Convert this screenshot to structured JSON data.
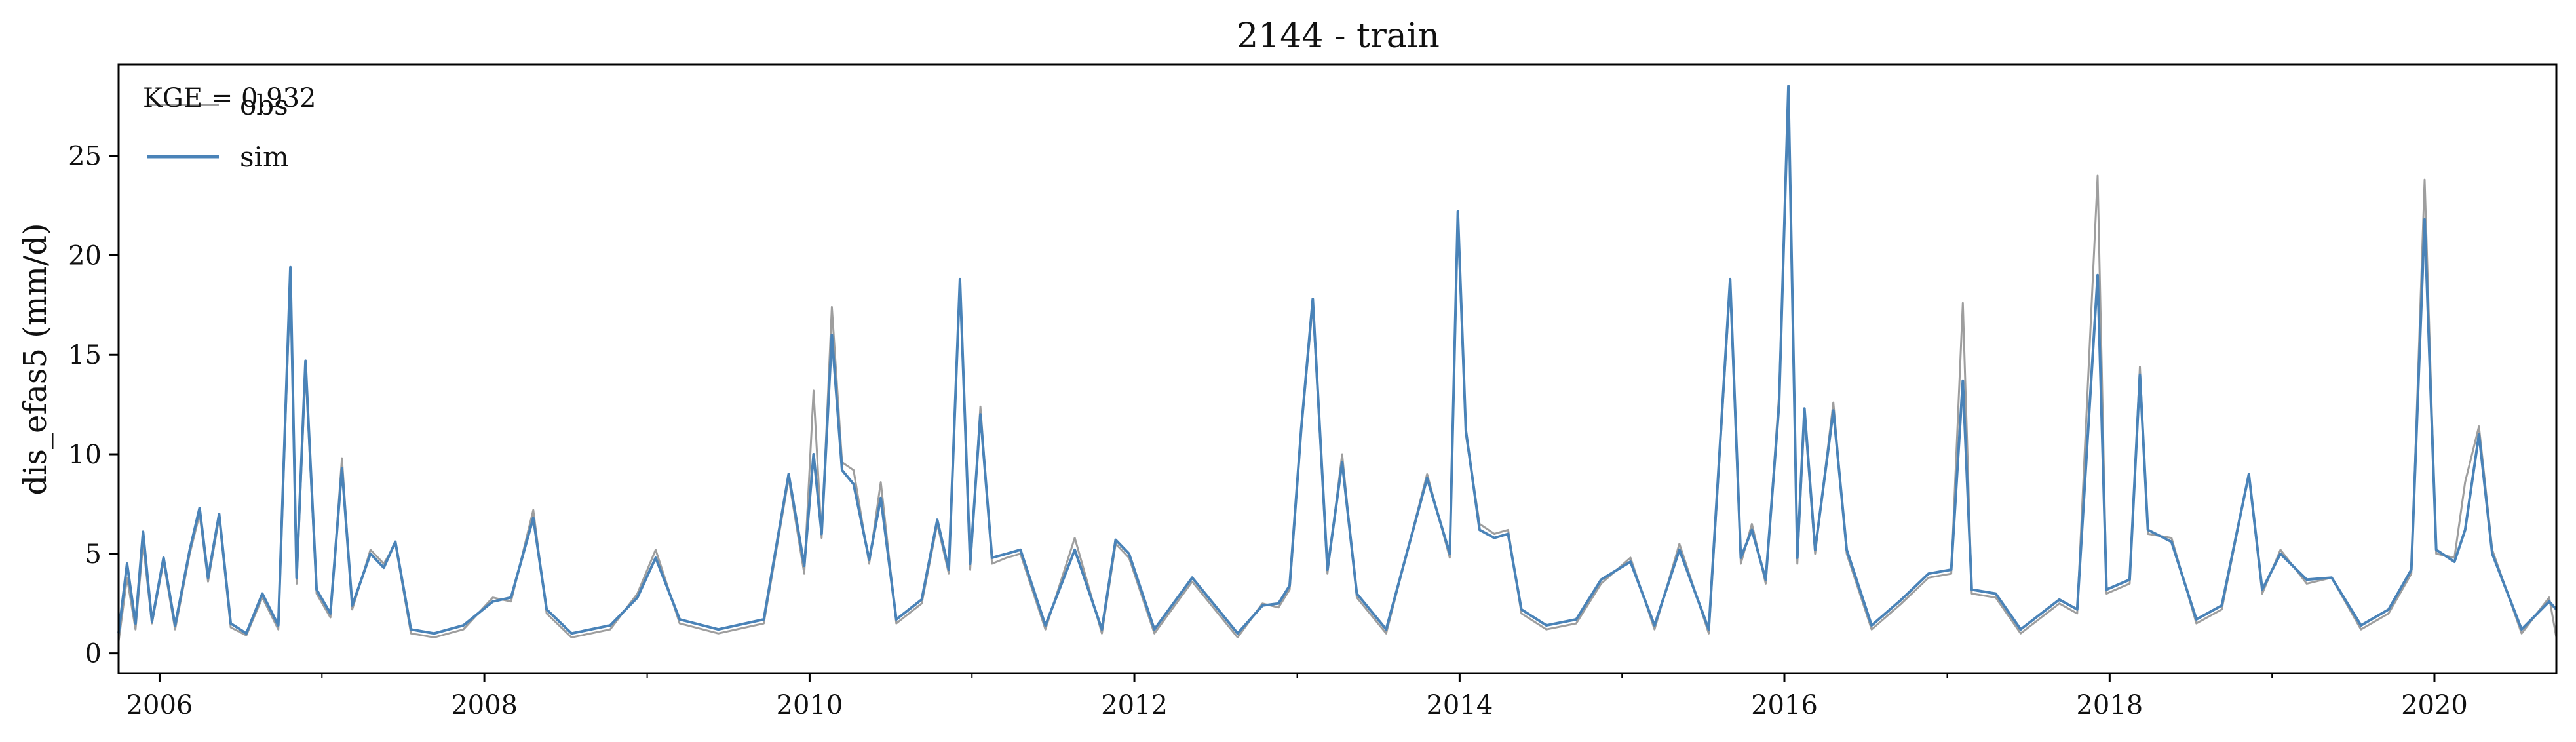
{
  "chart_data": {
    "type": "line",
    "title": "2144 - train",
    "xlabel": "",
    "ylabel": "dis_efas5 (mm/d)",
    "annotation": "KGE = 0.932",
    "legend": {
      "placement": "top-left",
      "entries": [
        "obs",
        "sim"
      ]
    },
    "grid": false,
    "x_axis": {
      "type": "date",
      "range": [
        "2005-10-01",
        "2020-10-01"
      ],
      "tick_labels": [
        "2006",
        "2008",
        "2010",
        "2012",
        "2014",
        "2016",
        "2018",
        "2020"
      ]
    },
    "y_axis": {
      "range": [
        -1,
        29.6
      ],
      "ticks": [
        0,
        5,
        10,
        15,
        20,
        25
      ],
      "tick_labels": [
        "0",
        "5",
        "10",
        "15",
        "20",
        "25"
      ]
    },
    "series": [
      {
        "name": "obs",
        "color": "#9e9e9e",
        "points": [
          [
            "2005-10-01",
            0.6
          ],
          [
            "2005-10-20",
            3.8
          ],
          [
            "2005-11-08",
            1.2
          ],
          [
            "2005-11-25",
            5.5
          ],
          [
            "2005-12-15",
            1.5
          ],
          [
            "2006-01-10",
            4.6
          ],
          [
            "2006-02-05",
            1.2
          ],
          [
            "2006-03-10",
            5.0
          ],
          [
            "2006-04-01",
            7.0
          ],
          [
            "2006-04-20",
            3.6
          ],
          [
            "2006-05-15",
            6.8
          ],
          [
            "2006-06-10",
            1.3
          ],
          [
            "2006-07-15",
            0.9
          ],
          [
            "2006-08-20",
            2.8
          ],
          [
            "2006-09-25",
            1.2
          ],
          [
            "2006-10-22",
            18.8
          ],
          [
            "2006-11-05",
            3.5
          ],
          [
            "2006-11-25",
            14.2
          ],
          [
            "2006-12-20",
            3.0
          ],
          [
            "2007-01-20",
            1.8
          ],
          [
            "2007-02-15",
            9.8
          ],
          [
            "2007-03-10",
            2.2
          ],
          [
            "2007-04-20",
            5.2
          ],
          [
            "2007-05-20",
            4.5
          ],
          [
            "2007-06-15",
            5.5
          ],
          [
            "2007-07-20",
            1.0
          ],
          [
            "2007-09-10",
            0.8
          ],
          [
            "2007-11-15",
            1.2
          ],
          [
            "2008-01-20",
            2.8
          ],
          [
            "2008-03-01",
            2.6
          ],
          [
            "2008-04-20",
            7.2
          ],
          [
            "2008-05-20",
            2.0
          ],
          [
            "2008-07-15",
            0.8
          ],
          [
            "2008-10-10",
            1.2
          ],
          [
            "2008-12-10",
            3.0
          ],
          [
            "2009-01-20",
            5.2
          ],
          [
            "2009-03-15",
            1.5
          ],
          [
            "2009-06-10",
            1.0
          ],
          [
            "2009-09-20",
            1.5
          ],
          [
            "2009-11-15",
            8.8
          ],
          [
            "2009-12-20",
            4.0
          ],
          [
            "2010-01-10",
            13.2
          ],
          [
            "2010-01-28",
            5.8
          ],
          [
            "2010-02-20",
            17.4
          ],
          [
            "2010-03-15",
            9.6
          ],
          [
            "2010-04-10",
            9.2
          ],
          [
            "2010-05-15",
            4.5
          ],
          [
            "2010-06-10",
            8.6
          ],
          [
            "2010-07-15",
            1.5
          ],
          [
            "2010-09-10",
            2.5
          ],
          [
            "2010-10-15",
            6.5
          ],
          [
            "2010-11-10",
            4.0
          ],
          [
            "2010-12-05",
            18.6
          ],
          [
            "2010-12-28",
            4.2
          ],
          [
            "2011-01-20",
            12.4
          ],
          [
            "2011-02-15",
            4.5
          ],
          [
            "2011-03-20",
            4.8
          ],
          [
            "2011-04-20",
            5.0
          ],
          [
            "2011-06-15",
            1.2
          ],
          [
            "2011-08-20",
            5.8
          ],
          [
            "2011-10-20",
            1.0
          ],
          [
            "2011-11-20",
            5.5
          ],
          [
            "2011-12-20",
            4.8
          ],
          [
            "2012-02-15",
            1.0
          ],
          [
            "2012-05-10",
            3.6
          ],
          [
            "2012-08-20",
            0.8
          ],
          [
            "2012-10-15",
            2.5
          ],
          [
            "2012-11-20",
            2.3
          ],
          [
            "2012-12-15",
            3.2
          ],
          [
            "2013-01-10",
            11.2
          ],
          [
            "2013-02-05",
            17.5
          ],
          [
            "2013-03-10",
            4.0
          ],
          [
            "2013-04-12",
            10.0
          ],
          [
            "2013-05-15",
            2.8
          ],
          [
            "2013-07-20",
            1.0
          ],
          [
            "2013-10-20",
            9.0
          ],
          [
            "2013-12-10",
            4.8
          ],
          [
            "2013-12-28",
            21.8
          ],
          [
            "2014-01-15",
            11.0
          ],
          [
            "2014-02-15",
            6.5
          ],
          [
            "2014-03-20",
            6.0
          ],
          [
            "2014-04-20",
            6.2
          ],
          [
            "2014-05-20",
            2.0
          ],
          [
            "2014-07-15",
            1.2
          ],
          [
            "2014-09-20",
            1.5
          ],
          [
            "2014-11-15",
            3.5
          ],
          [
            "2015-01-20",
            4.8
          ],
          [
            "2015-03-15",
            1.2
          ],
          [
            "2015-05-10",
            5.5
          ],
          [
            "2015-07-15",
            1.0
          ],
          [
            "2015-09-01",
            18.5
          ],
          [
            "2015-09-25",
            4.5
          ],
          [
            "2015-10-20",
            6.5
          ],
          [
            "2015-11-20",
            3.5
          ],
          [
            "2015-12-20",
            13.0
          ],
          [
            "2016-01-10",
            28.0
          ],
          [
            "2016-01-30",
            4.5
          ],
          [
            "2016-02-15",
            12.0
          ],
          [
            "2016-03-10",
            5.0
          ],
          [
            "2016-04-20",
            12.6
          ],
          [
            "2016-05-20",
            5.0
          ],
          [
            "2016-07-15",
            1.2
          ],
          [
            "2016-09-20",
            2.5
          ],
          [
            "2016-11-20",
            3.8
          ],
          [
            "2017-01-10",
            4.0
          ],
          [
            "2017-02-05",
            17.6
          ],
          [
            "2017-02-25",
            3.0
          ],
          [
            "2017-04-20",
            2.8
          ],
          [
            "2017-06-15",
            1.0
          ],
          [
            "2017-09-10",
            2.5
          ],
          [
            "2017-10-20",
            2.0
          ],
          [
            "2017-12-05",
            24.0
          ],
          [
            "2017-12-25",
            3.0
          ],
          [
            "2018-02-15",
            3.5
          ],
          [
            "2018-03-10",
            14.4
          ],
          [
            "2018-03-28",
            6.0
          ],
          [
            "2018-05-20",
            5.8
          ],
          [
            "2018-07-15",
            1.5
          ],
          [
            "2018-09-10",
            2.2
          ],
          [
            "2018-11-10",
            9.0
          ],
          [
            "2018-12-10",
            3.0
          ],
          [
            "2019-01-20",
            5.2
          ],
          [
            "2019-03-20",
            3.5
          ],
          [
            "2019-05-15",
            3.8
          ],
          [
            "2019-07-20",
            1.2
          ],
          [
            "2019-09-20",
            2.0
          ],
          [
            "2019-11-10",
            4.0
          ],
          [
            "2019-12-10",
            23.8
          ],
          [
            "2020-01-05",
            5.0
          ],
          [
            "2020-02-15",
            4.8
          ],
          [
            "2020-03-10",
            8.6
          ],
          [
            "2020-04-10",
            11.4
          ],
          [
            "2020-05-10",
            5.2
          ],
          [
            "2020-07-15",
            1.0
          ],
          [
            "2020-09-15",
            2.8
          ],
          [
            "2020-10-01",
            0.8
          ]
        ]
      },
      {
        "name": "sim",
        "color": "#4a83b8",
        "points": [
          [
            "2005-10-01",
            1.0
          ],
          [
            "2005-10-20",
            4.5
          ],
          [
            "2005-11-08",
            1.5
          ],
          [
            "2005-11-25",
            6.1
          ],
          [
            "2005-12-15",
            1.6
          ],
          [
            "2006-01-10",
            4.8
          ],
          [
            "2006-02-05",
            1.4
          ],
          [
            "2006-03-10",
            5.2
          ],
          [
            "2006-04-01",
            7.3
          ],
          [
            "2006-04-20",
            3.8
          ],
          [
            "2006-05-15",
            7.0
          ],
          [
            "2006-06-10",
            1.5
          ],
          [
            "2006-07-15",
            1.0
          ],
          [
            "2006-08-20",
            3.0
          ],
          [
            "2006-09-25",
            1.4
          ],
          [
            "2006-10-22",
            19.4
          ],
          [
            "2006-11-05",
            3.8
          ],
          [
            "2006-11-25",
            14.7
          ],
          [
            "2006-12-20",
            3.2
          ],
          [
            "2007-01-20",
            2.0
          ],
          [
            "2007-02-15",
            9.3
          ],
          [
            "2007-03-10",
            2.4
          ],
          [
            "2007-04-20",
            5.0
          ],
          [
            "2007-05-20",
            4.3
          ],
          [
            "2007-06-15",
            5.6
          ],
          [
            "2007-07-20",
            1.2
          ],
          [
            "2007-09-10",
            1.0
          ],
          [
            "2007-11-15",
            1.4
          ],
          [
            "2008-01-20",
            2.6
          ],
          [
            "2008-03-01",
            2.8
          ],
          [
            "2008-04-20",
            6.8
          ],
          [
            "2008-05-20",
            2.2
          ],
          [
            "2008-07-15",
            1.0
          ],
          [
            "2008-10-10",
            1.4
          ],
          [
            "2008-12-10",
            2.8
          ],
          [
            "2009-01-20",
            4.8
          ],
          [
            "2009-03-15",
            1.7
          ],
          [
            "2009-06-10",
            1.2
          ],
          [
            "2009-09-20",
            1.7
          ],
          [
            "2009-11-15",
            9.0
          ],
          [
            "2009-12-20",
            4.4
          ],
          [
            "2010-01-10",
            10.0
          ],
          [
            "2010-01-28",
            6.0
          ],
          [
            "2010-02-20",
            16.0
          ],
          [
            "2010-03-15",
            9.2
          ],
          [
            "2010-04-10",
            8.5
          ],
          [
            "2010-05-15",
            4.7
          ],
          [
            "2010-06-10",
            7.8
          ],
          [
            "2010-07-15",
            1.7
          ],
          [
            "2010-09-10",
            2.7
          ],
          [
            "2010-10-15",
            6.7
          ],
          [
            "2010-11-10",
            4.2
          ],
          [
            "2010-12-05",
            18.8
          ],
          [
            "2010-12-28",
            4.5
          ],
          [
            "2011-01-20",
            12.0
          ],
          [
            "2011-02-15",
            4.8
          ],
          [
            "2011-03-20",
            5.0
          ],
          [
            "2011-04-20",
            5.2
          ],
          [
            "2011-06-15",
            1.4
          ],
          [
            "2011-08-20",
            5.2
          ],
          [
            "2011-10-20",
            1.2
          ],
          [
            "2011-11-20",
            5.7
          ],
          [
            "2011-12-20",
            5.0
          ],
          [
            "2012-02-15",
            1.2
          ],
          [
            "2012-05-10",
            3.8
          ],
          [
            "2012-08-20",
            1.0
          ],
          [
            "2012-10-15",
            2.4
          ],
          [
            "2012-11-20",
            2.5
          ],
          [
            "2012-12-15",
            3.4
          ],
          [
            "2013-01-10",
            11.3
          ],
          [
            "2013-02-05",
            17.8
          ],
          [
            "2013-03-10",
            4.2
          ],
          [
            "2013-04-12",
            9.6
          ],
          [
            "2013-05-15",
            3.0
          ],
          [
            "2013-07-20",
            1.2
          ],
          [
            "2013-10-20",
            8.8
          ],
          [
            "2013-12-10",
            5.0
          ],
          [
            "2013-12-28",
            22.2
          ],
          [
            "2014-01-15",
            11.2
          ],
          [
            "2014-02-15",
            6.2
          ],
          [
            "2014-03-20",
            5.8
          ],
          [
            "2014-04-20",
            6.0
          ],
          [
            "2014-05-20",
            2.2
          ],
          [
            "2014-07-15",
            1.4
          ],
          [
            "2014-09-20",
            1.7
          ],
          [
            "2014-11-15",
            3.7
          ],
          [
            "2015-01-20",
            4.6
          ],
          [
            "2015-03-15",
            1.4
          ],
          [
            "2015-05-10",
            5.2
          ],
          [
            "2015-07-15",
            1.2
          ],
          [
            "2015-09-01",
            18.8
          ],
          [
            "2015-09-25",
            4.8
          ],
          [
            "2015-10-20",
            6.2
          ],
          [
            "2015-11-20",
            3.7
          ],
          [
            "2015-12-20",
            12.5
          ],
          [
            "2016-01-10",
            28.5
          ],
          [
            "2016-01-30",
            4.8
          ],
          [
            "2016-02-15",
            12.3
          ],
          [
            "2016-03-10",
            5.2
          ],
          [
            "2016-04-20",
            12.2
          ],
          [
            "2016-05-20",
            5.2
          ],
          [
            "2016-07-15",
            1.4
          ],
          [
            "2016-09-20",
            2.7
          ],
          [
            "2016-11-20",
            4.0
          ],
          [
            "2017-01-10",
            4.2
          ],
          [
            "2017-02-05",
            13.7
          ],
          [
            "2017-02-25",
            3.2
          ],
          [
            "2017-04-20",
            3.0
          ],
          [
            "2017-06-15",
            1.2
          ],
          [
            "2017-09-10",
            2.7
          ],
          [
            "2017-10-20",
            2.2
          ],
          [
            "2017-12-05",
            19.0
          ],
          [
            "2017-12-25",
            3.2
          ],
          [
            "2018-02-15",
            3.7
          ],
          [
            "2018-03-10",
            14.0
          ],
          [
            "2018-03-28",
            6.2
          ],
          [
            "2018-05-20",
            5.6
          ],
          [
            "2018-07-15",
            1.7
          ],
          [
            "2018-09-10",
            2.4
          ],
          [
            "2018-11-10",
            9.0
          ],
          [
            "2018-12-10",
            3.2
          ],
          [
            "2019-01-20",
            5.0
          ],
          [
            "2019-03-20",
            3.7
          ],
          [
            "2019-05-15",
            3.8
          ],
          [
            "2019-07-20",
            1.4
          ],
          [
            "2019-09-20",
            2.2
          ],
          [
            "2019-11-10",
            4.2
          ],
          [
            "2019-12-10",
            21.8
          ],
          [
            "2020-01-05",
            5.2
          ],
          [
            "2020-02-15",
            4.6
          ],
          [
            "2020-03-10",
            6.2
          ],
          [
            "2020-04-10",
            11.0
          ],
          [
            "2020-05-10",
            5.0
          ],
          [
            "2020-07-15",
            1.2
          ],
          [
            "2020-09-15",
            2.6
          ],
          [
            "2020-10-01",
            2.2
          ]
        ]
      }
    ]
  }
}
